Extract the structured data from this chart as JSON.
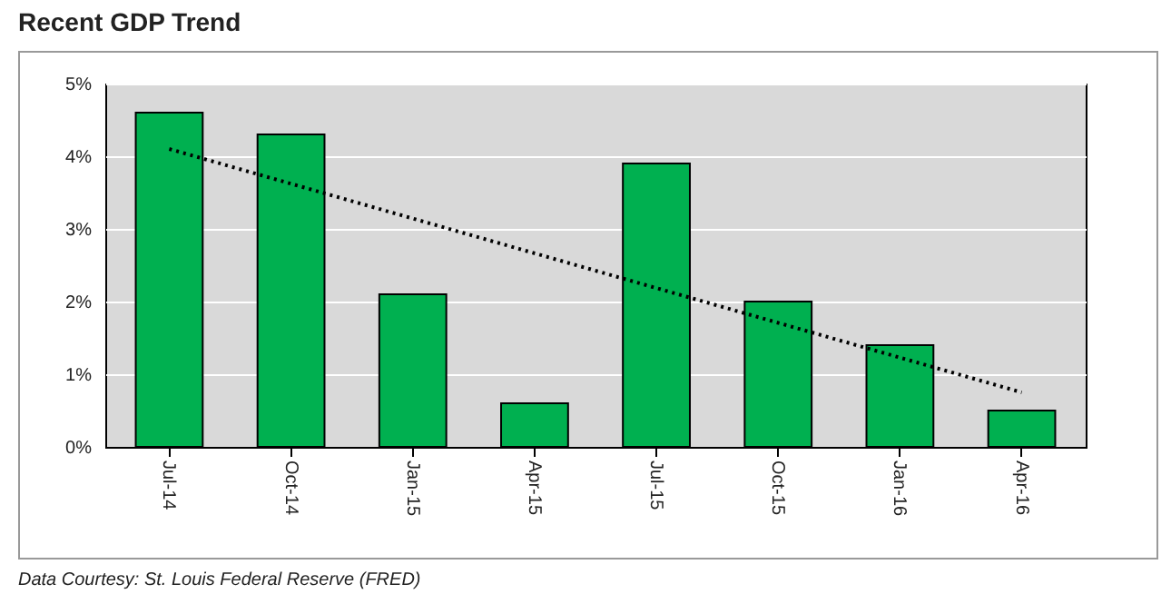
{
  "chart_data": {
    "type": "bar",
    "title": "Recent GDP Trend",
    "categories": [
      "Jul-14",
      "Oct-14",
      "Jan-15",
      "Apr-15",
      "Jul-15",
      "Oct-15",
      "Jan-16",
      "Apr-16"
    ],
    "series": [
      {
        "values": [
          4.6,
          4.3,
          2.1,
          0.6,
          3.9,
          2.0,
          1.4,
          0.5
        ],
        "color": "#00b050"
      },
      {
        "type": "line",
        "x": [
          "Jul-14",
          "Apr-16"
        ],
        "values": [
          4.1,
          0.75
        ],
        "color": "#000000",
        "line_style": "dotted"
      }
    ],
    "ylim": [
      0,
      5
    ],
    "yticks": [
      {
        "value": 0,
        "label": "0%"
      },
      {
        "value": 1,
        "label": "1%"
      },
      {
        "value": 2,
        "label": "2%"
      },
      {
        "value": 3,
        "label": "3%"
      },
      {
        "value": 4,
        "label": "4%"
      },
      {
        "value": 5,
        "label": "5%"
      }
    ],
    "grid": "y",
    "annotations": [
      "Data Courtesy: St. Louis Federal Reserve (FRED)"
    ]
  }
}
